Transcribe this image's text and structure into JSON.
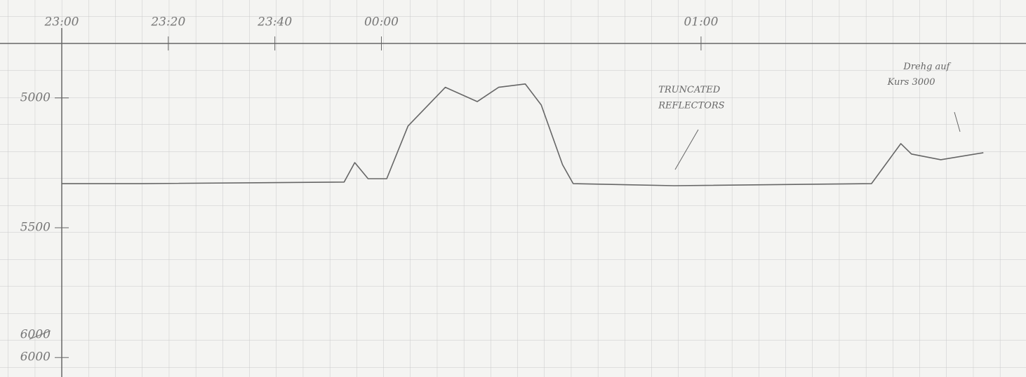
{
  "chart_data": {
    "type": "line",
    "x": [
      0,
      15,
      53,
      55,
      57.5,
      61,
      65,
      72,
      78,
      82,
      87,
      90,
      94,
      96,
      115,
      152,
      157.5,
      159.5,
      165,
      173
    ],
    "series": [
      {
        "color": "#666666",
        "values": [
          5330,
          5330,
          5324,
          5249,
          5311,
          5311,
          5108,
          4959,
          5014,
          4959,
          4946,
          5027,
          5257,
          5330,
          5338,
          5330,
          5176,
          5216,
          5238,
          5211
        ]
      }
    ],
    "xlim": [
      0,
      181
    ],
    "xticks": [
      {
        "value": 0,
        "label": "23:00"
      },
      {
        "value": 20,
        "label": "23:20"
      },
      {
        "value": 40,
        "label": "23:40"
      },
      {
        "value": 60,
        "label": "00:00"
      },
      {
        "value": 120,
        "label": "01:00"
      }
    ],
    "ylim": [
      4790,
      6075
    ],
    "y_inverted": true,
    "yticks": [
      5000,
      5500,
      6000
    ],
    "crossed_label": "6000",
    "annotations": [
      {
        "text": "TRUNCATED",
        "x": 112,
        "y": 4970
      },
      {
        "text": "REFLECTORS",
        "x": 112,
        "y": 5030
      },
      {
        "text": "Drehg auf",
        "x": 158,
        "y": 4880
      },
      {
        "text": "Kurs 3000",
        "x": 155,
        "y": 4940
      }
    ]
  }
}
